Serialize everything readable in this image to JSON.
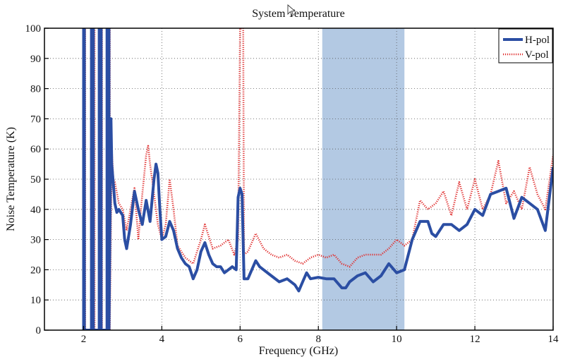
{
  "chart_data": {
    "type": "line",
    "title": "System Temperature",
    "xlabel": "Frequency (GHz)",
    "ylabel": "Noise Temperature (K)",
    "xlim": [
      1,
      14
    ],
    "ylim": [
      0,
      100
    ],
    "x_ticks": [
      2,
      4,
      6,
      8,
      10,
      12,
      14
    ],
    "y_ticks": [
      0,
      10,
      20,
      30,
      40,
      50,
      60,
      70,
      80,
      90,
      100
    ],
    "grid": true,
    "legend_position": "top-right",
    "highlight_band": {
      "x": [
        8.1,
        10.2
      ],
      "color": "#b3c9e3"
    },
    "series": [
      {
        "name": "H-pol",
        "color": "#2b4ea3",
        "style": "solid",
        "x": [
          2.0,
          2.0,
          2.02,
          2.02,
          2.1,
          2.15,
          2.2,
          2.2,
          2.25,
          2.25,
          2.3,
          2.35,
          2.4,
          2.4,
          2.45,
          2.45,
          2.5,
          2.55,
          2.6,
          2.6,
          2.65,
          2.65,
          2.7,
          2.72,
          2.75,
          2.8,
          2.85,
          2.9,
          3.0,
          3.05,
          3.1,
          3.2,
          3.3,
          3.4,
          3.5,
          3.6,
          3.7,
          3.8,
          3.85,
          3.9,
          3.95,
          4.0,
          4.1,
          4.2,
          4.3,
          4.4,
          4.5,
          4.6,
          4.7,
          4.8,
          4.9,
          5.0,
          5.1,
          5.2,
          5.3,
          5.4,
          5.5,
          5.6,
          5.7,
          5.8,
          5.9,
          5.95,
          6.0,
          6.05,
          6.1,
          6.2,
          6.3,
          6.4,
          6.5,
          6.6,
          6.8,
          7.0,
          7.2,
          7.4,
          7.5,
          7.6,
          7.7,
          7.8,
          8.0,
          8.2,
          8.4,
          8.6,
          8.7,
          8.8,
          9.0,
          9.2,
          9.4,
          9.6,
          9.8,
          10.0,
          10.2,
          10.4,
          10.6,
          10.8,
          10.9,
          11.0,
          11.2,
          11.4,
          11.6,
          11.8,
          12.0,
          12.2,
          12.4,
          12.6,
          12.8,
          13.0,
          13.2,
          13.4,
          13.6,
          13.8,
          14.0
        ],
        "y": [
          0,
          100,
          100,
          0,
          0,
          0,
          0,
          100,
          100,
          0,
          0,
          0,
          0,
          100,
          100,
          0,
          0,
          0,
          0,
          100,
          100,
          0,
          70,
          55,
          50,
          42,
          39,
          40,
          38,
          30,
          27,
          35,
          46,
          40,
          35,
          43,
          36,
          50,
          55,
          52,
          40,
          30,
          31,
          36,
          33,
          27,
          24,
          22,
          21,
          17,
          20,
          26,
          29,
          25,
          22,
          21,
          21,
          19,
          20,
          21,
          20,
          44,
          47,
          45,
          17,
          17,
          20,
          23,
          21,
          20,
          18,
          16,
          17,
          15,
          13,
          16,
          19,
          17,
          17.5,
          17,
          17,
          14,
          14,
          16,
          18,
          19,
          16,
          18,
          22,
          19,
          20,
          30,
          36,
          36,
          32,
          31,
          35,
          35,
          33,
          35,
          40,
          38,
          45,
          46,
          47,
          37,
          44,
          42,
          40,
          33,
          54
        ]
      },
      {
        "name": "V-pol",
        "color": "#e03030",
        "style": "dotted",
        "x": [
          2.0,
          2.0,
          2.04,
          2.04,
          2.1,
          2.15,
          2.22,
          2.22,
          2.28,
          2.28,
          2.32,
          2.38,
          2.42,
          2.42,
          2.47,
          2.47,
          2.52,
          2.57,
          2.62,
          2.62,
          2.67,
          2.67,
          2.72,
          2.76,
          2.8,
          2.9,
          3.0,
          3.1,
          3.2,
          3.3,
          3.4,
          3.5,
          3.6,
          3.65,
          3.7,
          3.8,
          3.9,
          4.0,
          4.1,
          4.2,
          4.3,
          4.4,
          4.6,
          4.8,
          5.0,
          5.1,
          5.3,
          5.5,
          5.7,
          5.85,
          5.95,
          6.0,
          6.02,
          6.08,
          6.1,
          6.2,
          6.4,
          6.6,
          6.8,
          7.0,
          7.2,
          7.4,
          7.6,
          7.8,
          8.0,
          8.2,
          8.4,
          8.6,
          8.8,
          9.0,
          9.2,
          9.4,
          9.6,
          9.8,
          10.0,
          10.2,
          10.4,
          10.6,
          10.8,
          11.0,
          11.2,
          11.4,
          11.6,
          11.8,
          12.0,
          12.2,
          12.4,
          12.6,
          12.8,
          13.0,
          13.2,
          13.4,
          13.6,
          13.8,
          14.0
        ],
        "y": [
          0,
          100,
          100,
          0,
          0,
          0,
          0,
          100,
          100,
          0,
          0,
          0,
          0,
          100,
          100,
          0,
          0,
          0,
          0,
          100,
          100,
          0,
          60,
          50,
          49,
          42,
          40,
          33,
          40,
          47,
          30,
          45,
          58,
          61,
          55,
          45,
          35,
          30,
          35,
          50,
          40,
          28,
          24,
          22,
          30,
          35,
          27,
          28,
          30,
          25,
          30,
          100,
          100,
          100,
          25,
          26,
          32,
          27,
          25,
          24,
          25,
          23,
          22,
          24,
          25,
          24,
          25,
          22,
          21,
          24,
          25,
          25,
          25,
          27,
          30,
          28,
          30,
          43,
          40,
          42,
          46,
          38,
          49,
          40,
          50,
          40,
          45,
          56,
          42,
          46,
          40,
          54,
          45,
          40,
          58
        ]
      }
    ]
  }
}
